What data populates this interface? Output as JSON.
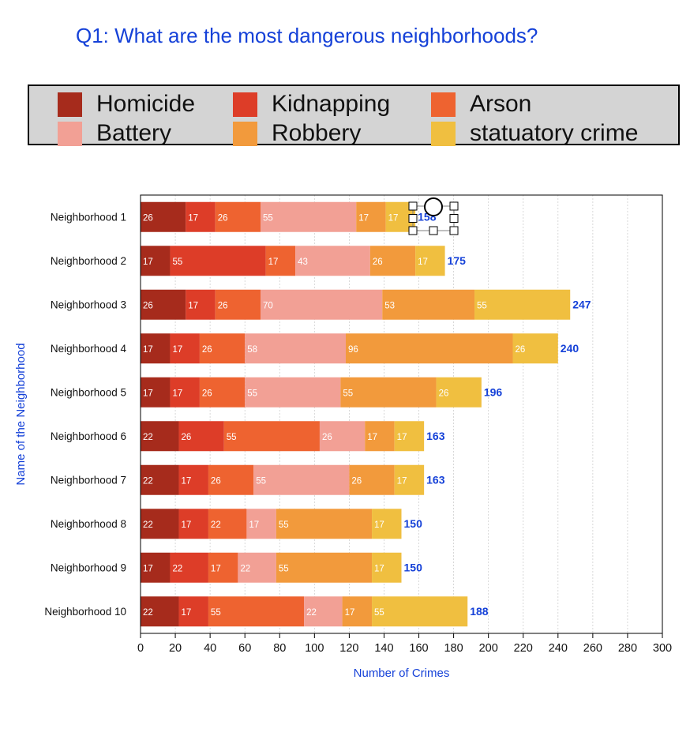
{
  "title": "Q1: What are the most dangerous neighborhoods?",
  "colors": {
    "title": "#1541d8",
    "legend_bg": "#d4d4d4",
    "totals": "#1541d8"
  },
  "chart_data": {
    "type": "bar",
    "orientation": "horizontal",
    "stacked": true,
    "title": "",
    "xlabel": "Number of Crimes",
    "ylabel": "Name of the Neighborhood",
    "xlim": [
      0,
      300
    ],
    "xticks": [
      0,
      20,
      40,
      60,
      80,
      100,
      120,
      140,
      160,
      180,
      200,
      220,
      240,
      260,
      280,
      300
    ],
    "grid": "vertical dashed",
    "legend_position": "top",
    "categories": [
      "Neighborhood  1",
      "Neighborhood 2",
      "Neighborhood  3",
      "Neighborhood  4",
      "Neighborhood  5",
      "Neighborhood  6",
      "Neighborhood  7",
      "Neighborhood  8",
      "Neighborhood  9",
      "Neighborhood  10"
    ],
    "series": [
      {
        "name": "Homicide",
        "color": "#a62b1c",
        "values": [
          26,
          17,
          26,
          17,
          17,
          22,
          22,
          22,
          17,
          22
        ]
      },
      {
        "name": "Kidnapping",
        "color": "#dd3d28",
        "values": [
          17,
          55,
          17,
          17,
          17,
          26,
          17,
          17,
          22,
          17
        ]
      },
      {
        "name": "Arson",
        "color": "#ee6330",
        "values": [
          26,
          17,
          26,
          26,
          26,
          55,
          26,
          22,
          17,
          55
        ]
      },
      {
        "name": "Battery",
        "color": "#f2a095",
        "values": [
          55,
          43,
          70,
          58,
          55,
          26,
          55,
          17,
          22,
          22
        ]
      },
      {
        "name": "Robbery",
        "color": "#f29a3c",
        "values": [
          17,
          26,
          53,
          96,
          55,
          17,
          26,
          55,
          55,
          17
        ]
      },
      {
        "name": "statuatory crime",
        "color": "#f0bf40",
        "values": [
          17,
          17,
          55,
          26,
          26,
          17,
          17,
          17,
          17,
          55
        ]
      }
    ],
    "totals": [
      158,
      175,
      247,
      240,
      196,
      163,
      163,
      150,
      150,
      188
    ]
  }
}
